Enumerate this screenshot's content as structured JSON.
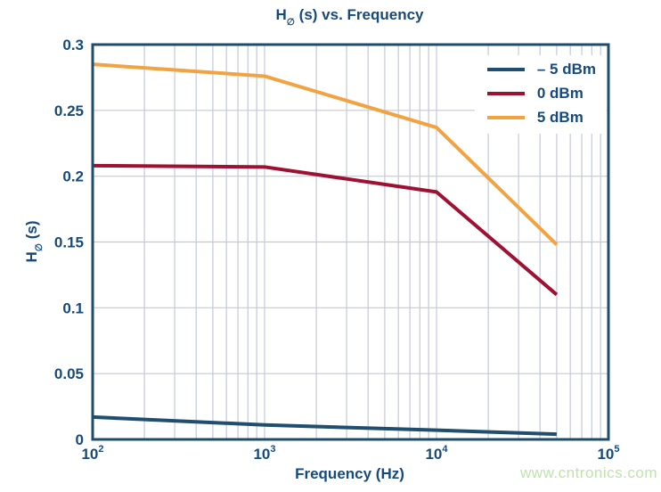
{
  "watermark": {
    "text": "www.cntronics.com"
  },
  "titles": {
    "title_main": "H",
    "title_sub": "∅",
    "title_rest": " (s) vs. Frequency",
    "ylabel_main": "H",
    "ylabel_sub": "∅",
    "ylabel_rest": " (s)"
  },
  "colors": {
    "axis": "#1d4d6e",
    "grid": "#c5c8d8",
    "text": "#164a7c",
    "watermark_green": "#bfe3ab",
    "series_neg5dbm": "#1f4e70",
    "series_0dbm": "#9e1132",
    "series_5dbm": "#f2a341"
  },
  "chart_data": {
    "type": "line",
    "title": "H∅ (s) vs. Frequency",
    "xlabel": "Frequency (Hz)",
    "ylabel": "H∅ (s)",
    "x_scale": "log",
    "xlim": [
      100,
      100000
    ],
    "ylim": [
      0,
      0.3
    ],
    "grid": true,
    "legend_position": "top-right",
    "x": [
      100,
      1000,
      10000,
      50000
    ],
    "series": [
      {
        "name": "– 5 dBm",
        "color": "#1f4e70",
        "values": [
          0.017,
          0.011,
          0.007,
          0.004
        ]
      },
      {
        "name": "0 dBm",
        "color": "#9e1132",
        "values": [
          0.208,
          0.207,
          0.188,
          0.11
        ]
      },
      {
        "name": "5 dBm",
        "color": "#f2a341",
        "values": [
          0.285,
          0.276,
          0.237,
          0.148
        ]
      }
    ],
    "y_ticks": [
      {
        "label": "0",
        "value": 0
      },
      {
        "label": "0.05",
        "value": 0.05
      },
      {
        "label": "0.1",
        "value": 0.1
      },
      {
        "label": "0.15",
        "value": 0.15
      },
      {
        "label": "0.2",
        "value": 0.2
      },
      {
        "label": "0.25",
        "value": 0.25
      },
      {
        "label": "0.3",
        "value": 0.3
      }
    ],
    "x_ticks": [
      {
        "base": "10",
        "exp": "2",
        "value": 100
      },
      {
        "base": "10",
        "exp": "3",
        "value": 1000
      },
      {
        "base": "10",
        "exp": "4",
        "value": 10000
      },
      {
        "base": "10",
        "exp": "5",
        "value": 100000
      }
    ]
  }
}
